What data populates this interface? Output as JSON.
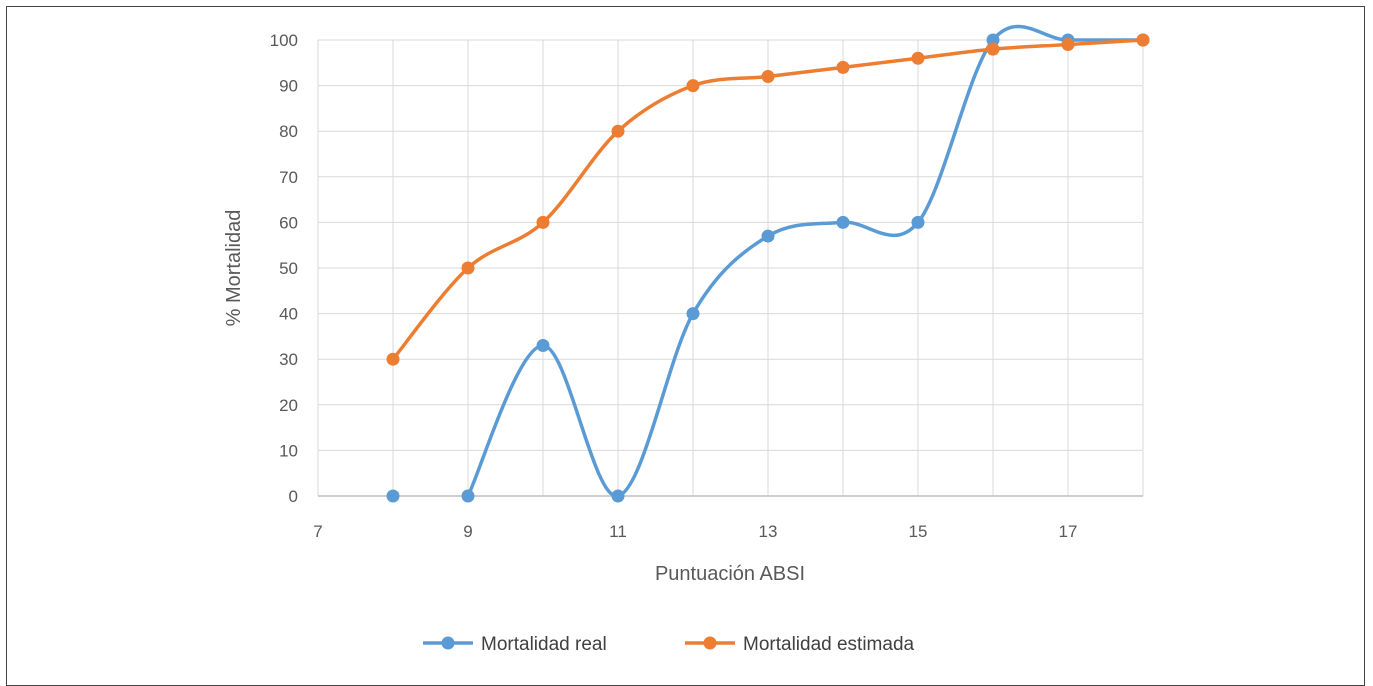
{
  "chart_data": {
    "type": "line",
    "title": "",
    "xlabel": "Puntuación ABSI",
    "ylabel": "% Mortalidad",
    "xlim": [
      7,
      18
    ],
    "ylim": [
      0,
      100
    ],
    "x_ticks": [
      7,
      9,
      11,
      13,
      15,
      17
    ],
    "y_ticks": [
      0,
      10,
      20,
      30,
      40,
      50,
      60,
      70,
      80,
      90,
      100
    ],
    "grid": true,
    "smooth": true,
    "legend_position": "bottom",
    "series": [
      {
        "name": "Mortalidad real",
        "color": "#5b9bd5",
        "x": [
          8,
          9,
          10,
          11,
          12,
          13,
          14,
          15,
          16,
          17,
          18
        ],
        "y": [
          0,
          0,
          33,
          0,
          40,
          57,
          60,
          60,
          100,
          100,
          100
        ],
        "line_starts_at_index": 1
      },
      {
        "name": "Mortalidad estimada",
        "color": "#ed7d31",
        "x": [
          8,
          9,
          10,
          11,
          12,
          13,
          14,
          15,
          16,
          17,
          18
        ],
        "y": [
          30,
          50,
          60,
          80,
          90,
          92,
          94,
          96,
          98,
          99,
          100
        ],
        "line_starts_at_index": 0
      }
    ]
  }
}
